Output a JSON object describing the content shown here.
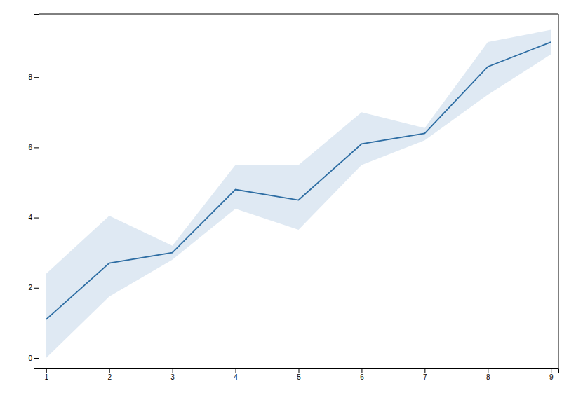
{
  "chart_data": {
    "type": "line",
    "x": [
      1,
      2,
      3,
      4,
      5,
      6,
      7,
      8,
      9
    ],
    "series": [
      {
        "type": "area",
        "color": "#aec9e0",
        "lower": [
          0.0,
          1.75,
          2.8,
          4.25,
          3.65,
          5.5,
          6.2,
          7.5,
          8.65
        ],
        "upper": [
          2.4,
          4.05,
          3.2,
          5.5,
          5.5,
          7.0,
          6.55,
          9.0,
          9.35
        ]
      },
      {
        "type": "line",
        "color": "#2d6da3",
        "values": [
          1.1,
          2.7,
          3.0,
          4.8,
          4.5,
          6.1,
          6.4,
          8.3,
          9.0
        ]
      }
    ],
    "xlim": [
      0.88,
      9.12
    ],
    "ylim": [
      -0.3,
      9.8
    ],
    "xticks": [
      1,
      2,
      3,
      4,
      5,
      6,
      7,
      8,
      9
    ],
    "yticks": [
      0,
      2,
      4,
      6,
      8
    ]
  }
}
